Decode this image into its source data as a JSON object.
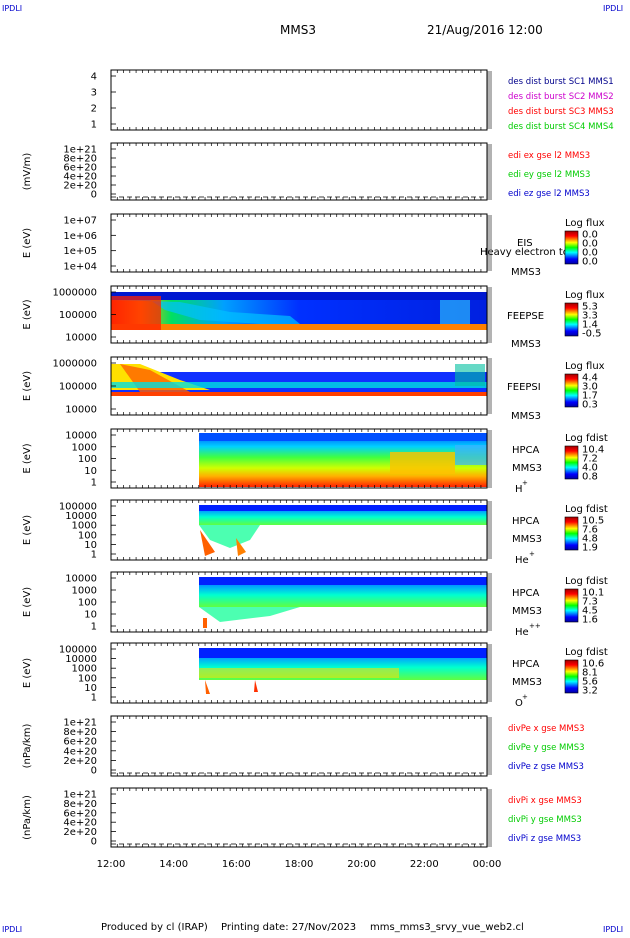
{
  "header": {
    "corner_tl": "IPDLI",
    "corner_tr": "IPDLI",
    "corner_bl": "IPDLI",
    "corner_br": "IPDLI",
    "spacecraft": "MMS3",
    "datetime": "21/Aug/2016 12:00"
  },
  "footer": {
    "produced_by": "Produced by cl (IRAP)",
    "printing_date": "Printing date: 27/Nov/2023",
    "filename": "mms_mms3_srvy_vue_web2.cl"
  },
  "colors": {
    "red": "#ff0000",
    "green": "#00cc00",
    "blue": "#0000cc",
    "magenta": "#cc00cc",
    "navy": "#00008b"
  },
  "chart_data": [
    {
      "type": "line",
      "panel": "burst",
      "y_ticks": [
        "4",
        "3",
        "2",
        "1"
      ],
      "ylim": [
        0.5,
        4.5
      ],
      "ylabel": "",
      "legend": [
        {
          "text": "des dist burst SC1 MMS1",
          "color": "#00008b"
        },
        {
          "text": "des dist burst SC2 MMS2",
          "color": "#cc00cc"
        },
        {
          "text": "des dist burst SC3 MMS3",
          "color": "#ff0000"
        },
        {
          "text": "des dist burst SC4 MMS4",
          "color": "#00cc00"
        }
      ]
    },
    {
      "type": "line",
      "panel": "edi",
      "ylabel": "(mV/m)",
      "y_ticks": [
        "1e+21",
        "8e+20",
        "6e+20",
        "4e+20",
        "2e+20",
        "0"
      ],
      "ylim": [
        0,
        1e+21
      ],
      "legend": [
        {
          "text": "edi ex gse l2 MMS3",
          "color": "#ff0000"
        },
        {
          "text": "edi ey gse l2 MMS3",
          "color": "#00cc00"
        },
        {
          "text": "edi ez gse l2 MMS3",
          "color": "#0000cc"
        }
      ]
    },
    {
      "type": "heatmap",
      "panel": "eis",
      "ylabel": "E (eV)",
      "y_ticks": [
        "1e+07",
        "1e+06",
        "1e+05",
        "1e+04"
      ],
      "labels": [
        "EIS",
        "Heavy electron to",
        "MMS3"
      ],
      "colorbar_title": "Log flux",
      "colorbar_ticks": [
        "0.0",
        "0.0",
        "0.0",
        "0.0"
      ]
    },
    {
      "type": "heatmap",
      "panel": "feepse",
      "ylabel": "E (eV)",
      "y_ticks": [
        "1000000",
        "100000",
        "10000"
      ],
      "labels": [
        "FEEPSE",
        "MMS3"
      ],
      "colorbar_title": "Log flux",
      "colorbar_ticks": [
        "5.3",
        "3.3",
        "1.4",
        "-0.5"
      ]
    },
    {
      "type": "heatmap",
      "panel": "feepsi",
      "ylabel": "E (eV)",
      "y_ticks": [
        "1000000",
        "100000",
        "10000"
      ],
      "labels": [
        "FEEPSI",
        "MMS3"
      ],
      "colorbar_title": "Log flux",
      "colorbar_ticks": [
        "4.4",
        "3.0",
        "1.7",
        "0.3"
      ]
    },
    {
      "type": "heatmap",
      "panel": "hpca_h",
      "ylabel": "E (eV)",
      "y_ticks": [
        "10000",
        "1000",
        "100",
        "10",
        "1"
      ],
      "labels": [
        "HPCA",
        "MMS3",
        "H",
        "+"
      ],
      "colorbar_title": "Log fdist",
      "colorbar_ticks": [
        "10.4",
        "7.2",
        "4.0",
        "0.8"
      ]
    },
    {
      "type": "heatmap",
      "panel": "hpca_he",
      "ylabel": "E (eV)",
      "y_ticks": [
        "100000",
        "10000",
        "1000",
        "100",
        "10",
        "1"
      ],
      "labels": [
        "HPCA",
        "MMS3",
        "He",
        "+"
      ],
      "colorbar_title": "Log fdist",
      "colorbar_ticks": [
        "10.5",
        "7.6",
        "4.8",
        "1.9"
      ]
    },
    {
      "type": "heatmap",
      "panel": "hpca_hepp",
      "ylabel": "E (eV)",
      "y_ticks": [
        "10000",
        "1000",
        "100",
        "10",
        "1"
      ],
      "labels": [
        "HPCA",
        "MMS3",
        "He",
        "++"
      ],
      "colorbar_title": "Log fdist",
      "colorbar_ticks": [
        "10.1",
        "7.3",
        "4.5",
        "1.6"
      ]
    },
    {
      "type": "heatmap",
      "panel": "hpca_o",
      "ylabel": "E (eV)",
      "y_ticks": [
        "100000",
        "10000",
        "1000",
        "100",
        "10",
        "1"
      ],
      "labels": [
        "HPCA",
        "MMS3",
        "O",
        "+"
      ],
      "colorbar_title": "Log fdist",
      "colorbar_ticks": [
        "10.6",
        "8.1",
        "5.6",
        "3.2"
      ]
    },
    {
      "type": "line",
      "panel": "divpe",
      "ylabel": "(nPa/km)",
      "y_ticks": [
        "1e+21",
        "8e+20",
        "6e+20",
        "4e+20",
        "2e+20",
        "0"
      ],
      "ylim": [
        0,
        1e+21
      ],
      "legend": [
        {
          "text": "divPe x gse MMS3",
          "color": "#ff0000"
        },
        {
          "text": "divPe y gse MMS3",
          "color": "#00cc00"
        },
        {
          "text": "divPe z gse MMS3",
          "color": "#0000cc"
        }
      ]
    },
    {
      "type": "line",
      "panel": "divpi",
      "ylabel": "(nPa/km)",
      "y_ticks": [
        "1e+21",
        "8e+20",
        "6e+20",
        "4e+20",
        "2e+20",
        "0"
      ],
      "ylim": [
        0,
        1e+21
      ],
      "legend": [
        {
          "text": "divPi x gse MMS3",
          "color": "#ff0000"
        },
        {
          "text": "divPi y gse MMS3",
          "color": "#00cc00"
        },
        {
          "text": "divPi z gse MMS3",
          "color": "#0000cc"
        }
      ],
      "x_ticks": [
        "12:00",
        "14:00",
        "16:00",
        "18:00",
        "20:00",
        "22:00",
        "00:00"
      ]
    }
  ]
}
